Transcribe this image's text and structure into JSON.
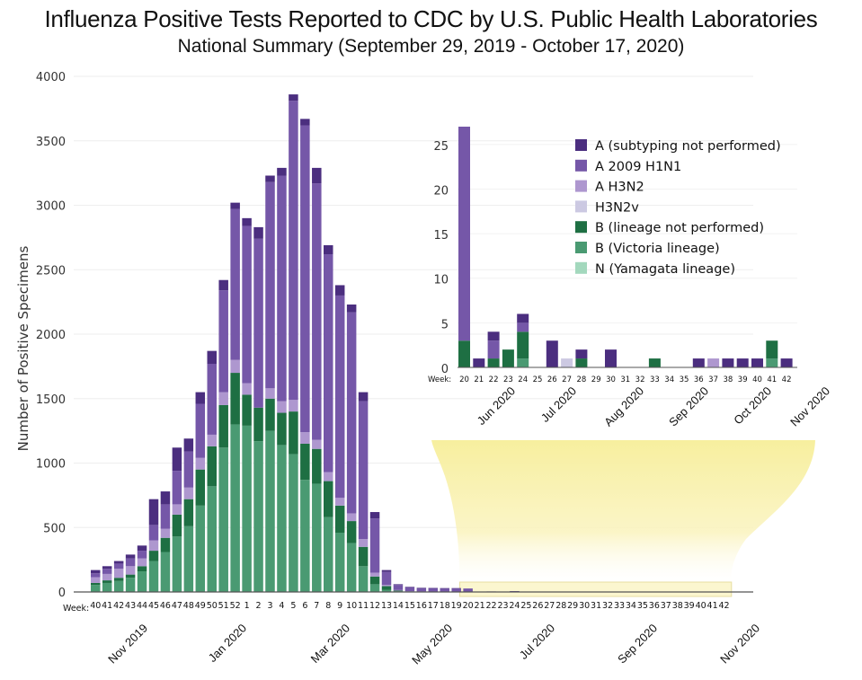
{
  "title": "Influenza Positive Tests Reported to CDC by U.S. Public Health Laboratories",
  "subtitle": "National Summary (September 29, 2019 - October 17, 2020)",
  "colors": {
    "A (subtyping not performed)": "#4b2e7f",
    "A 2009 H1N1": "#7557a8",
    "A H3N2": "#ae97cf",
    "H3N2v": "#ccc9e2",
    "B (lineage not performed)": "#1e6f43",
    "B (Victoria lineage)": "#4a9a72",
    "N (Yamagata lineage)": "#a3d8bd",
    "highlight": "#f7ef9e",
    "grid": "#eeeeee"
  },
  "chart_data": [
    {
      "type": "bar",
      "stacked": true,
      "name": "main",
      "title": "Influenza Positive Tests Reported to CDC by U.S. Public Health Laboratories",
      "subtitle": "National Summary (September 29, 2019 - October 17, 2020)",
      "xlabel": "Week:",
      "ylabel": "Number of Positive Specimens",
      "ylim": [
        0,
        4000
      ],
      "yticks": [
        0,
        500,
        1000,
        1500,
        2000,
        2500,
        3000,
        3500,
        4000
      ],
      "grid": true,
      "categories": [
        "40",
        "41",
        "42",
        "43",
        "44",
        "45",
        "46",
        "47",
        "48",
        "49",
        "50",
        "51",
        "52",
        "1",
        "2",
        "3",
        "4",
        "5",
        "6",
        "7",
        "8",
        "9",
        "10",
        "11",
        "12",
        "13",
        "14",
        "15",
        "16",
        "17",
        "18",
        "19",
        "20",
        "21",
        "22",
        "23",
        "24",
        "25",
        "26",
        "27",
        "28",
        "29",
        "30",
        "31",
        "32",
        "33",
        "34",
        "35",
        "36",
        "37",
        "38",
        "39",
        "40",
        "41",
        "42"
      ],
      "month_labels": [
        "Nov 2019",
        "Jan 2020",
        "Mar 2020",
        "May 2020",
        "Jul 2020",
        "Sep 2020",
        "Nov 2020"
      ],
      "series": [
        {
          "name": "B (Victoria lineage)",
          "values": [
            55,
            70,
            85,
            110,
            160,
            240,
            310,
            430,
            510,
            670,
            820,
            1120,
            1300,
            1290,
            1170,
            1250,
            1140,
            1070,
            870,
            840,
            580,
            460,
            380,
            200,
            60,
            15,
            5,
            2,
            1,
            1,
            0,
            0,
            0,
            0,
            0,
            0,
            1,
            0,
            0,
            0,
            0,
            0,
            0,
            0,
            0,
            0,
            0,
            0,
            0,
            0,
            0,
            0,
            0,
            1,
            0
          ]
        },
        {
          "name": "B (lineage not performed)",
          "values": [
            15,
            20,
            25,
            25,
            40,
            80,
            110,
            170,
            210,
            280,
            310,
            330,
            400,
            240,
            260,
            250,
            250,
            330,
            280,
            270,
            280,
            210,
            170,
            150,
            60,
            30,
            8,
            3,
            2,
            1,
            1,
            1,
            3,
            0,
            1,
            2,
            3,
            0,
            0,
            0,
            1,
            0,
            0,
            0,
            0,
            1,
            0,
            0,
            0,
            0,
            0,
            0,
            0,
            2,
            0
          ]
        },
        {
          "name": "N (Yamagata lineage)",
          "values": [
            0,
            0,
            0,
            0,
            0,
            0,
            0,
            0,
            0,
            0,
            0,
            0,
            0,
            0,
            0,
            0,
            0,
            0,
            0,
            0,
            0,
            0,
            0,
            0,
            0,
            0,
            0,
            0,
            0,
            0,
            0,
            0,
            0,
            0,
            0,
            0,
            0,
            0,
            0,
            0,
            0,
            0,
            0,
            0,
            0,
            0,
            0,
            0,
            0,
            0,
            0,
            0,
            0,
            0,
            0
          ]
        },
        {
          "name": "H3N2v",
          "values": [
            0,
            0,
            0,
            0,
            0,
            0,
            0,
            0,
            0,
            0,
            0,
            0,
            0,
            0,
            0,
            0,
            0,
            0,
            0,
            0,
            0,
            0,
            0,
            0,
            0,
            0,
            0,
            0,
            0,
            0,
            0,
            0,
            0,
            0,
            0,
            0,
            0,
            0,
            0,
            1,
            0,
            0,
            0,
            0,
            0,
            0,
            0,
            0,
            0,
            0,
            0,
            0,
            0,
            0,
            0
          ]
        },
        {
          "name": "A H3N2",
          "values": [
            45,
            50,
            70,
            65,
            60,
            80,
            70,
            80,
            90,
            90,
            90,
            100,
            100,
            90,
            0,
            80,
            90,
            90,
            90,
            70,
            70,
            60,
            60,
            60,
            30,
            10,
            2,
            1,
            1,
            1,
            1,
            1,
            0,
            0,
            0,
            0,
            0,
            0,
            0,
            0,
            0,
            0,
            0,
            0,
            0,
            0,
            0,
            0,
            0,
            1,
            0,
            0,
            0,
            0,
            0
          ]
        },
        {
          "name": "A 2009 H1N1",
          "values": [
            30,
            40,
            40,
            60,
            60,
            120,
            190,
            260,
            280,
            420,
            550,
            790,
            1170,
            1220,
            1310,
            1600,
            1750,
            2320,
            2380,
            1990,
            1690,
            1570,
            1560,
            1070,
            420,
            100,
            40,
            30,
            25,
            25,
            25,
            25,
            24,
            0,
            2,
            0,
            1,
            0,
            0,
            0,
            0,
            0,
            0,
            0,
            0,
            0,
            0,
            0,
            0,
            0,
            0,
            0,
            0,
            0,
            0
          ]
        },
        {
          "name": "A (subtyping not performed)",
          "values": [
            25,
            20,
            20,
            30,
            40,
            200,
            100,
            180,
            100,
            90,
            100,
            80,
            50,
            60,
            90,
            50,
            60,
            50,
            50,
            120,
            70,
            80,
            60,
            70,
            50,
            15,
            5,
            4,
            3,
            3,
            3,
            3,
            0,
            1,
            1,
            0,
            1,
            0,
            3,
            0,
            1,
            0,
            2,
            0,
            0,
            0,
            0,
            0,
            1,
            0,
            1,
            1,
            1,
            0,
            1
          ]
        }
      ],
      "zoom_range": [
        "20",
        "42"
      ]
    },
    {
      "type": "bar",
      "stacked": true,
      "name": "inset",
      "xlabel": "Week:",
      "ylim": [
        0,
        27
      ],
      "yticks": [
        0,
        5,
        10,
        15,
        20,
        25
      ],
      "categories": [
        "20",
        "21",
        "22",
        "23",
        "24",
        "25",
        "26",
        "27",
        "28",
        "29",
        "30",
        "31",
        "32",
        "33",
        "34",
        "35",
        "36",
        "37",
        "38",
        "39",
        "40",
        "41",
        "42"
      ],
      "month_labels": [
        "Jun 2020",
        "Jul 2020",
        "Aug 2020",
        "Sep 2020",
        "Oct 2020",
        "Nov 2020"
      ],
      "series": [
        {
          "name": "B (Victoria lineage)",
          "values": [
            0,
            0,
            0,
            0,
            1,
            0,
            0,
            0,
            0,
            0,
            0,
            0,
            0,
            0,
            0,
            0,
            0,
            0,
            0,
            0,
            0,
            1,
            0
          ]
        },
        {
          "name": "B (lineage not performed)",
          "values": [
            3,
            0,
            1,
            2,
            3,
            0,
            0,
            0,
            1,
            0,
            0,
            0,
            0,
            1,
            0,
            0,
            0,
            0,
            0,
            0,
            0,
            2,
            0
          ]
        },
        {
          "name": "H3N2v",
          "values": [
            0,
            0,
            0,
            0,
            0,
            0,
            0,
            1,
            0,
            0,
            0,
            0,
            0,
            0,
            0,
            0,
            0,
            0,
            0,
            0,
            0,
            0,
            0
          ]
        },
        {
          "name": "A H3N2",
          "values": [
            0,
            0,
            0,
            0,
            0,
            0,
            0,
            0,
            0,
            0,
            0,
            0,
            0,
            0,
            0,
            0,
            0,
            1,
            0,
            0,
            0,
            0,
            0
          ]
        },
        {
          "name": "A 2009 H1N1",
          "values": [
            24,
            0,
            2,
            0,
            1,
            0,
            0,
            0,
            0,
            0,
            0,
            0,
            0,
            0,
            0,
            0,
            0,
            0,
            0,
            0,
            0,
            0,
            0
          ]
        },
        {
          "name": "A (subtyping not performed)",
          "values": [
            0,
            1,
            1,
            0,
            1,
            0,
            3,
            0,
            1,
            0,
            2,
            0,
            0,
            0,
            0,
            0,
            1,
            0,
            1,
            1,
            1,
            0,
            1
          ]
        }
      ],
      "legend": {
        "position": "top-right",
        "entries": [
          "A (subtyping not performed)",
          "A 2009 H1N1",
          "A H3N2",
          "H3N2v",
          "B (lineage not performed)",
          "B (Victoria lineage)",
          "N (Yamagata lineage)"
        ]
      }
    }
  ]
}
